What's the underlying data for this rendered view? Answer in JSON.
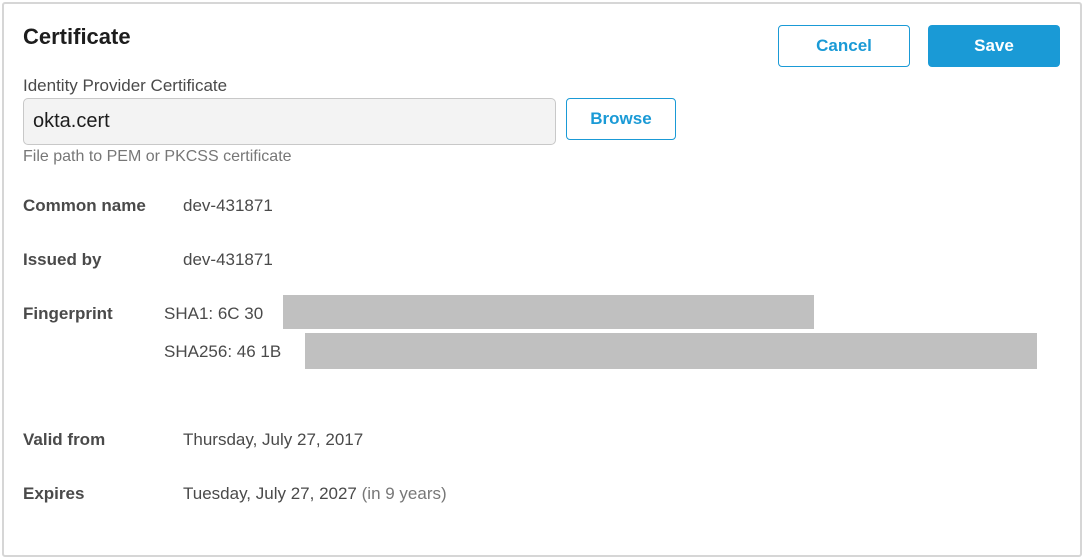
{
  "header": {
    "title": "Certificate",
    "cancel_label": "Cancel",
    "save_label": "Save"
  },
  "field": {
    "label": "Identity Provider Certificate",
    "value": "okta.cert",
    "browse_label": "Browse",
    "help": "File path to PEM or PKCSS certificate"
  },
  "details": {
    "common_name": {
      "label": "Common name",
      "value": "dev-431871"
    },
    "issued_by": {
      "label": "Issued by",
      "value": "dev-431871"
    },
    "fingerprint": {
      "label": "Fingerprint",
      "sha1": "SHA1: 6C 30",
      "sha256": "SHA256: 46 1B"
    },
    "valid_from": {
      "label": "Valid from",
      "value": "Thursday, July 27, 2017"
    },
    "expires": {
      "label": "Expires",
      "value": "Tuesday, July 27, 2027",
      "relative": "(in 9 years)"
    }
  },
  "colors": {
    "accent": "#1a9ad6",
    "redaction": "#c0c0c0"
  }
}
